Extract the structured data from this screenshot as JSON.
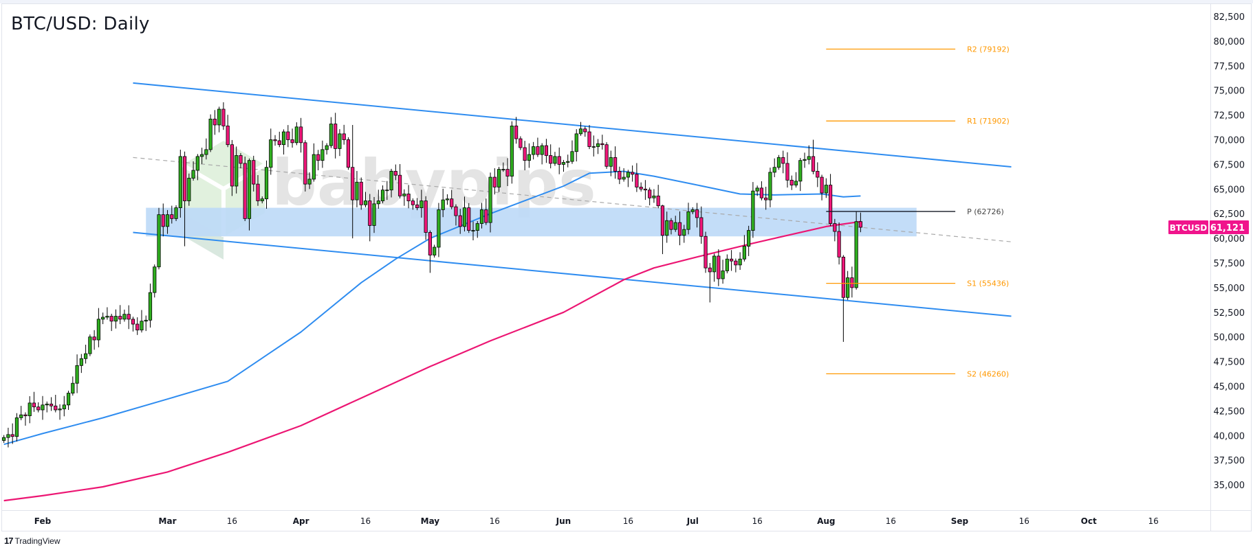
{
  "header": {
    "title": "BTC/USD: Daily"
  },
  "footer": {
    "brand": "TradingView",
    "brand_icon": "tradingview-logo-icon"
  },
  "watermark": {
    "text": "babypips"
  },
  "colors": {
    "up": "#2fae1f",
    "down": "#f0177a",
    "channel": "#2e8cf0",
    "sma50": "#2e8cf0",
    "sma200": "#ec1673",
    "pivot_sr": "#ff9800",
    "pivot_p": "#131722",
    "zone": "#bcd9f7",
    "tag": "#f0148c"
  },
  "price_tag": {
    "symbol": "BTCUSD",
    "value": "61,121"
  },
  "chart_data": {
    "type": "candlestick",
    "title": "BTC/USD: Daily",
    "price_unit": "thousand USD",
    "ylim": [
      32.5,
      84
    ],
    "y_ticks": [
      "35,000",
      "37,500",
      "40,000",
      "42,500",
      "45,000",
      "47,500",
      "50,000",
      "52,500",
      "55,000",
      "57,500",
      "60,000",
      "62,500",
      "65,000",
      "67,500",
      "70,000",
      "72,500",
      "75,000",
      "77,500",
      "80,000",
      "82,500"
    ],
    "x_ticks": [
      {
        "date": "2024-02-01",
        "label": "Feb",
        "major": true
      },
      {
        "date": "2024-03-01",
        "label": "Mar",
        "major": true
      },
      {
        "date": "2024-03-16",
        "label": "16"
      },
      {
        "date": "2024-04-01",
        "label": "Apr",
        "major": true
      },
      {
        "date": "2024-04-16",
        "label": "16"
      },
      {
        "date": "2024-05-01",
        "label": "May",
        "major": true
      },
      {
        "date": "2024-05-16",
        "label": "16"
      },
      {
        "date": "2024-06-01",
        "label": "Jun",
        "major": true
      },
      {
        "date": "2024-06-16",
        "label": "16"
      },
      {
        "date": "2024-07-01",
        "label": "Jul",
        "major": true
      },
      {
        "date": "2024-07-16",
        "label": "16"
      },
      {
        "date": "2024-08-01",
        "label": "Aug",
        "major": true
      },
      {
        "date": "2024-08-16",
        "label": "16"
      },
      {
        "date": "2024-09-01",
        "label": "Sep",
        "major": true
      },
      {
        "date": "2024-09-16",
        "label": "16"
      },
      {
        "date": "2024-10-01",
        "label": "Oct",
        "major": true
      },
      {
        "date": "2024-10-16",
        "label": "16"
      }
    ],
    "start_date": "2024-01-23",
    "first_open": 39.5,
    "closes": [
      39.8,
      40.1,
      39.9,
      41.8,
      42.1,
      42.0,
      43.3,
      42.9,
      42.6,
      43.1,
      43.2,
      43.0,
      42.6,
      42.7,
      43.1,
      44.3,
      45.3,
      47.1,
      47.8,
      48.3,
      50.0,
      49.7,
      51.8,
      52.0,
      52.1,
      51.6,
      52.1,
      51.8,
      52.3,
      51.8,
      51.3,
      50.7,
      51.6,
      51.7,
      54.5,
      57.1,
      62.4,
      61.2,
      62.4,
      62.0,
      63.1,
      68.3,
      63.8,
      66.1,
      66.9,
      68.3,
      68.5,
      69.0,
      72.1,
      71.5,
      73.1,
      71.4,
      69.5,
      65.3,
      68.4,
      67.6,
      62.0,
      67.9,
      65.5,
      63.8,
      64.0,
      67.2,
      70.0,
      69.9,
      69.5,
      70.8,
      70.0,
      69.7,
      71.3,
      69.7,
      65.5,
      66.0,
      68.5,
      67.9,
      69.0,
      69.4,
      71.6,
      69.1,
      70.6,
      70.0,
      67.2,
      63.9,
      65.7,
      63.4,
      63.8,
      61.3,
      63.5,
      63.8,
      64.9,
      64.9,
      66.8,
      66.4,
      64.3,
      64.5,
      63.8,
      63.4,
      63.1,
      63.8,
      60.6,
      58.3,
      59.1,
      62.9,
      63.9,
      64.0,
      63.2,
      62.3,
      61.2,
      63.1,
      60.8,
      60.8,
      61.5,
      62.9,
      61.6,
      66.2,
      65.2,
      67.0,
      67.0,
      66.3,
      71.4,
      70.1,
      69.2,
      67.9,
      68.5,
      69.3,
      68.5,
      69.4,
      68.4,
      67.6,
      68.3,
      67.5,
      67.7,
      67.8,
      68.8,
      70.6,
      71.1,
      70.8,
      69.3,
      69.3,
      69.6,
      69.5,
      67.3,
      68.2,
      66.8,
      66.0,
      66.2,
      66.7,
      66.5,
      65.2,
      65.0,
      64.9,
      64.1,
      64.3,
      63.3,
      60.3,
      61.8,
      60.9,
      61.6,
      60.3,
      60.9,
      62.7,
      62.9,
      62.1,
      60.2,
      57.0,
      56.6,
      58.2,
      55.9,
      56.7,
      57.9,
      57.7,
      57.3,
      57.9,
      59.2,
      60.8,
      64.8,
      65.1,
      64.1,
      63.9,
      66.7,
      67.2,
      68.2,
      67.6,
      65.9,
      65.4,
      65.8,
      67.9,
      68.0,
      68.3,
      66.8,
      66.2,
      64.6,
      65.4,
      61.5,
      60.7,
      58.1,
      54.0,
      56.0,
      55.0,
      61.7,
      61.121
    ],
    "wick_overrides": {
      "2024-03-05": [
        68.8,
        59.2
      ],
      "2024-03-14": [
        73.8,
        71.0
      ],
      "2024-03-20": [
        68.1,
        60.8
      ],
      "2024-04-13": [
        71.5,
        60.0
      ],
      "2024-04-17": [
        64.5,
        59.7
      ],
      "2024-05-01": [
        60.8,
        56.5
      ],
      "2024-06-05": [
        71.8,
        70.4
      ],
      "2024-06-24": [
        63.4,
        58.4
      ],
      "2024-07-05": [
        57.5,
        53.5
      ],
      "2024-07-29": [
        70.0,
        66.5
      ],
      "2024-08-05": [
        58.3,
        49.5
      ],
      "2024-08-08": [
        62.7,
        54.8
      ]
    },
    "sma50": [
      [
        "2024-01-23",
        39.1
      ],
      [
        "2024-02-01",
        40.2
      ],
      [
        "2024-02-15",
        41.8
      ],
      [
        "2024-03-01",
        43.7
      ],
      [
        "2024-03-15",
        45.5
      ],
      [
        "2024-04-01",
        50.5
      ],
      [
        "2024-04-15",
        55.5
      ],
      [
        "2024-04-23",
        57.9
      ],
      [
        "2024-05-01",
        60.0
      ],
      [
        "2024-05-15",
        62.5
      ],
      [
        "2024-06-01",
        65.3
      ],
      [
        "2024-06-07",
        66.6
      ],
      [
        "2024-06-15",
        66.8
      ],
      [
        "2024-06-22",
        66.3
      ],
      [
        "2024-07-01",
        65.5
      ],
      [
        "2024-07-12",
        64.5
      ],
      [
        "2024-07-20",
        64.4
      ],
      [
        "2024-07-31",
        64.5
      ],
      [
        "2024-08-05",
        64.2
      ],
      [
        "2024-08-09",
        64.3
      ]
    ],
    "sma200": [
      [
        "2024-01-23",
        33.4
      ],
      [
        "2024-02-01",
        33.9
      ],
      [
        "2024-02-15",
        34.8
      ],
      [
        "2024-03-01",
        36.3
      ],
      [
        "2024-03-15",
        38.3
      ],
      [
        "2024-04-01",
        41.0
      ],
      [
        "2024-04-15",
        43.8
      ],
      [
        "2024-05-01",
        47.0
      ],
      [
        "2024-05-15",
        49.6
      ],
      [
        "2024-06-01",
        52.5
      ],
      [
        "2024-06-15",
        55.8
      ],
      [
        "2024-06-22",
        57.0
      ],
      [
        "2024-07-01",
        58.0
      ],
      [
        "2024-07-15",
        59.5
      ],
      [
        "2024-08-01",
        61.2
      ],
      [
        "2024-08-09",
        61.7
      ]
    ],
    "channel": {
      "upper": [
        [
          "2024-02-22",
          75.75
        ],
        [
          "2024-09-13",
          67.25
        ]
      ],
      "lower": [
        [
          "2024-02-22",
          60.6
        ],
        [
          "2024-09-13",
          52.1
        ]
      ],
      "middle": [
        [
          "2024-02-22",
          68.2
        ],
        [
          "2024-09-13",
          59.65
        ]
      ]
    },
    "zone": {
      "from": "2024-02-25",
      "to": "2024-08-22",
      "low": 60.2,
      "high": 63.1
    },
    "pivots": [
      {
        "label": "R2 (79192)",
        "value": 79.192,
        "kind": "sr"
      },
      {
        "label": "R1 (71902)",
        "value": 71.902,
        "kind": "sr"
      },
      {
        "label": "P (62726)",
        "value": 62.726,
        "kind": "p"
      },
      {
        "label": "S1 (55436)",
        "value": 55.436,
        "kind": "sr"
      },
      {
        "label": "S2 (46260)",
        "value": 46.26,
        "kind": "sr"
      }
    ],
    "pivot_range": {
      "from": "2024-08-01",
      "to": "2024-08-31"
    },
    "last_price": 61.121
  }
}
